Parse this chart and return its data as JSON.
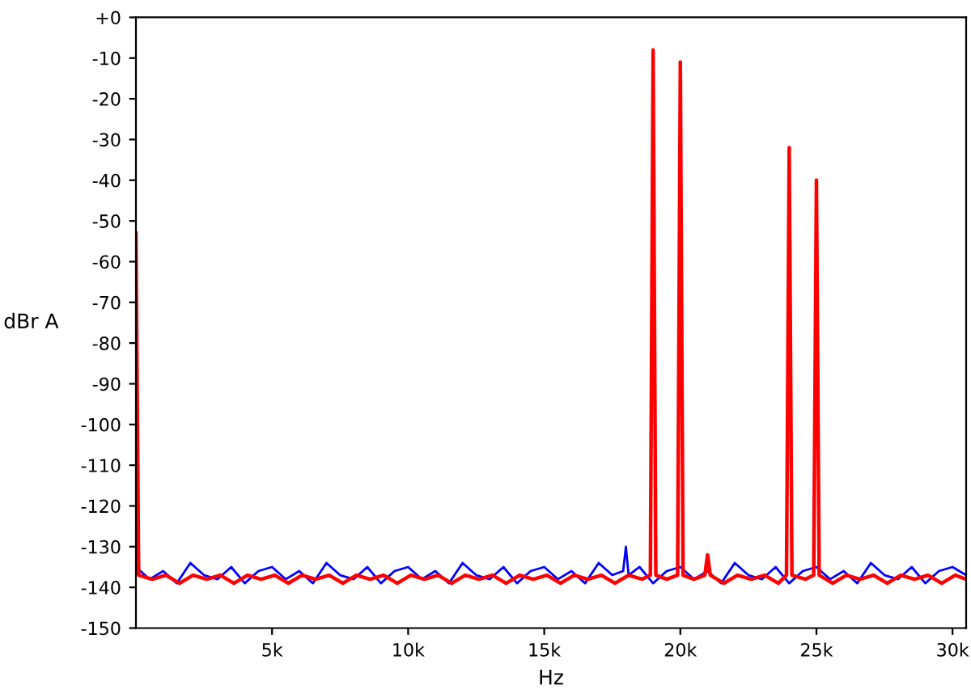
{
  "chart_data": {
    "type": "line",
    "xlabel": "Hz",
    "ylabel": "dBr A",
    "xlim": [
      0,
      30500
    ],
    "ylim": [
      -150,
      0
    ],
    "xticks": [
      {
        "value": 5000,
        "label": "5k"
      },
      {
        "value": 10000,
        "label": "10k"
      },
      {
        "value": 15000,
        "label": "15k"
      },
      {
        "value": 20000,
        "label": "20k"
      },
      {
        "value": 25000,
        "label": "25k"
      },
      {
        "value": 30000,
        "label": "30k"
      }
    ],
    "yticks": [
      {
        "value": 0,
        "label": "+0"
      },
      -10,
      -20,
      -30,
      -40,
      -50,
      -60,
      -70,
      -80,
      -90,
      -100,
      -110,
      -120,
      -130,
      -140,
      -150
    ],
    "grid": false,
    "legend": false,
    "marker": "none",
    "line_style": "solid",
    "series": [
      {
        "color": "#0000ff",
        "x": [
          0,
          500,
          1000,
          1500,
          2000,
          2500,
          3000,
          3500,
          4000,
          4500,
          5000,
          5500,
          6000,
          6500,
          7000,
          7500,
          8000,
          8500,
          9000,
          9500,
          10000,
          10500,
          11000,
          11500,
          12000,
          12500,
          13000,
          13500,
          14000,
          14500,
          15000,
          15500,
          16000,
          16500,
          17000,
          17500,
          17900,
          18000,
          18100,
          18500,
          19000,
          19500,
          20000,
          20500,
          21000,
          21500,
          22000,
          22500,
          23000,
          23500,
          24000,
          24500,
          25000,
          25500,
          26000,
          26500,
          27000,
          27500,
          28000,
          28500,
          29000,
          29500,
          30000,
          30500
        ],
        "values": [
          -135,
          -138,
          -136,
          -139,
          -134,
          -137,
          -138,
          -135,
          -139,
          -136,
          -135,
          -138,
          -136,
          -139,
          -134,
          -137,
          -138,
          -135,
          -139,
          -136,
          -135,
          -138,
          -136,
          -139,
          -134,
          -137,
          -138,
          -135,
          -139,
          -136,
          -135,
          -138,
          -136,
          -139,
          -134,
          -137,
          -136,
          -130,
          -137,
          -135,
          -139,
          -136,
          -135,
          -138,
          -136,
          -139,
          -134,
          -137,
          -138,
          -135,
          -139,
          -136,
          -135,
          -138,
          -136,
          -139,
          -134,
          -137,
          -138,
          -135,
          -139,
          -136,
          -135,
          -137
        ]
      },
      {
        "color": "#ff0000",
        "x": [
          0,
          100,
          600,
          1100,
          1600,
          2100,
          2600,
          3100,
          3600,
          4100,
          4600,
          5100,
          5600,
          6100,
          6600,
          7100,
          7600,
          8100,
          8600,
          9100,
          9600,
          10100,
          10600,
          11100,
          11600,
          12100,
          12600,
          13100,
          13600,
          14100,
          14600,
          15100,
          15600,
          16100,
          16600,
          17100,
          17600,
          18100,
          18600,
          18900,
          19000,
          19100,
          19500,
          19900,
          20000,
          20100,
          20500,
          20900,
          21000,
          21100,
          21600,
          22100,
          22600,
          23100,
          23600,
          23900,
          24000,
          24100,
          24600,
          24900,
          25000,
          25100,
          25600,
          26100,
          26600,
          27100,
          27600,
          28100,
          28600,
          29100,
          29600,
          30100,
          30500
        ],
        "values": [
          -53,
          -137,
          -138,
          -137,
          -139,
          -137,
          -138,
          -137,
          -139,
          -137,
          -138,
          -137,
          -139,
          -137,
          -138,
          -137,
          -139,
          -137,
          -138,
          -137,
          -139,
          -137,
          -138,
          -137,
          -139,
          -137,
          -138,
          -137,
          -139,
          -137,
          -138,
          -137,
          -139,
          -137,
          -138,
          -137,
          -139,
          -137,
          -138,
          -137,
          -8,
          -137,
          -138,
          -137,
          -11,
          -137,
          -138,
          -137,
          -132,
          -137,
          -139,
          -137,
          -138,
          -137,
          -139,
          -137,
          -32,
          -137,
          -138,
          -137,
          -40,
          -137,
          -139,
          -137,
          -138,
          -137,
          -139,
          -137,
          -138,
          -137,
          -139,
          -137,
          -138
        ]
      }
    ]
  }
}
